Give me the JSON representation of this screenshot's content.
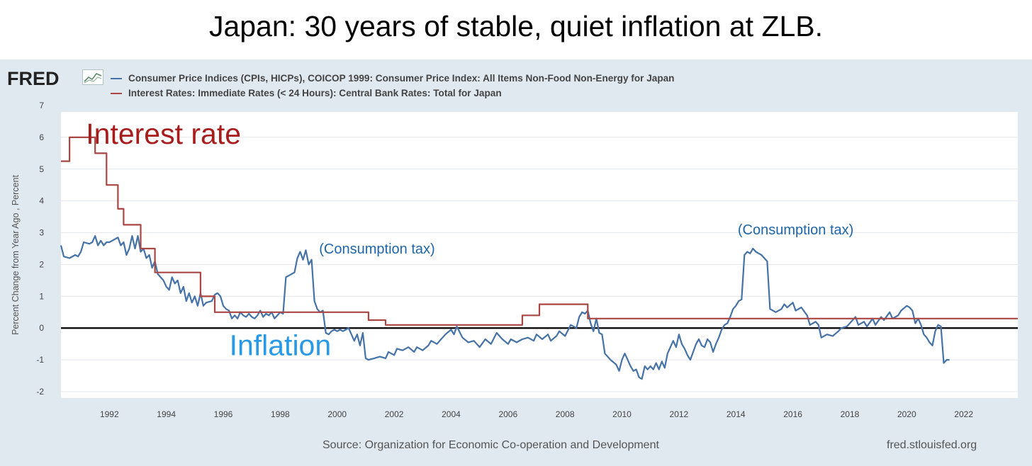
{
  "slide": {
    "title": "Japan: 30 years of stable, quiet inflation at ZLB."
  },
  "fred": {
    "logo": "FRED",
    "source": "Source: Organization for Economic Co-operation and Development",
    "url": "fred.stlouisfed.org"
  },
  "colors": {
    "inflation": "#4572a7",
    "interest": "#aa4643",
    "zero_line": "#000000",
    "panel": "#e1e9f0"
  },
  "chart_data": {
    "type": "line",
    "title": "",
    "ylabel": "Percent Change from Year Ago , Percent",
    "xlim": [
      1990.3,
      2023.9
    ],
    "ylim": [
      -2.2,
      6.8
    ],
    "yticks": [
      -2,
      -1,
      0,
      1,
      2,
      3,
      4,
      5,
      6,
      7
    ],
    "xticks": [
      1992,
      1994,
      1996,
      1998,
      2000,
      2002,
      2004,
      2006,
      2008,
      2010,
      2012,
      2014,
      2016,
      2018,
      2020,
      2022
    ],
    "grid": true,
    "legend_position": "top",
    "series": [
      {
        "name": "Consumer Price Indices (CPIs, HICPs), COICOP 1999: Consumer Price Index: All Items Non-Food Non-Energy for Japan",
        "step": false,
        "points": [
          [
            1990.3,
            2.6
          ],
          [
            1990.4,
            2.25
          ],
          [
            1990.6,
            2.2
          ],
          [
            1990.8,
            2.3
          ],
          [
            1990.9,
            2.25
          ],
          [
            1991.0,
            2.4
          ],
          [
            1991.1,
            2.7
          ],
          [
            1991.3,
            2.65
          ],
          [
            1991.4,
            2.7
          ],
          [
            1991.5,
            2.9
          ],
          [
            1991.6,
            2.6
          ],
          [
            1991.7,
            2.75
          ],
          [
            1991.8,
            2.6
          ],
          [
            1991.9,
            2.7
          ],
          [
            1992.0,
            2.7
          ],
          [
            1992.1,
            2.75
          ],
          [
            1992.2,
            2.8
          ],
          [
            1992.3,
            2.85
          ],
          [
            1992.4,
            2.6
          ],
          [
            1992.5,
            2.7
          ],
          [
            1992.6,
            2.3
          ],
          [
            1992.7,
            2.5
          ],
          [
            1992.8,
            2.9
          ],
          [
            1992.9,
            2.5
          ],
          [
            1993.0,
            2.9
          ],
          [
            1993.1,
            2.4
          ],
          [
            1993.2,
            2.5
          ],
          [
            1993.3,
            2.2
          ],
          [
            1993.4,
            2.3
          ],
          [
            1993.5,
            1.9
          ],
          [
            1993.6,
            2.1
          ],
          [
            1993.7,
            1.7
          ],
          [
            1993.8,
            1.6
          ],
          [
            1993.9,
            1.5
          ],
          [
            1994.0,
            1.3
          ],
          [
            1994.1,
            1.2
          ],
          [
            1994.2,
            1.6
          ],
          [
            1994.3,
            1.4
          ],
          [
            1994.4,
            1.5
          ],
          [
            1994.5,
            1.1
          ],
          [
            1994.6,
            1.3
          ],
          [
            1994.7,
            0.85
          ],
          [
            1994.8,
            1.1
          ],
          [
            1994.9,
            0.8
          ],
          [
            1995.0,
            1.0
          ],
          [
            1995.1,
            0.7
          ],
          [
            1995.2,
            1.1
          ],
          [
            1995.3,
            0.7
          ],
          [
            1995.4,
            0.8
          ],
          [
            1995.6,
            0.85
          ],
          [
            1995.7,
            1.05
          ],
          [
            1995.8,
            1.1
          ],
          [
            1995.9,
            1.0
          ],
          [
            1996.0,
            0.7
          ],
          [
            1996.1,
            0.6
          ],
          [
            1996.2,
            0.55
          ],
          [
            1996.3,
            0.3
          ],
          [
            1996.4,
            0.4
          ],
          [
            1996.5,
            0.3
          ],
          [
            1996.6,
            0.5
          ],
          [
            1996.7,
            0.4
          ],
          [
            1996.8,
            0.35
          ],
          [
            1996.9,
            0.45
          ],
          [
            1997.0,
            0.35
          ],
          [
            1997.1,
            0.3
          ],
          [
            1997.2,
            0.4
          ],
          [
            1997.3,
            0.55
          ],
          [
            1997.4,
            0.35
          ],
          [
            1997.5,
            0.45
          ],
          [
            1997.6,
            0.4
          ],
          [
            1997.7,
            0.5
          ],
          [
            1997.8,
            0.3
          ],
          [
            1997.9,
            0.4
          ],
          [
            1998.0,
            0.5
          ],
          [
            1998.1,
            0.45
          ],
          [
            1998.2,
            1.6
          ],
          [
            1998.3,
            1.65
          ],
          [
            1998.4,
            1.7
          ],
          [
            1998.5,
            1.75
          ],
          [
            1998.6,
            2.2
          ],
          [
            1998.7,
            2.4
          ],
          [
            1998.8,
            2.15
          ],
          [
            1998.9,
            2.45
          ],
          [
            1999.0,
            2.0
          ],
          [
            1999.1,
            2.15
          ],
          [
            1999.2,
            0.85
          ],
          [
            1999.3,
            0.6
          ],
          [
            1999.4,
            0.5
          ],
          [
            1999.5,
            0.55
          ],
          [
            1999.6,
            -0.15
          ],
          [
            1999.7,
            -0.2
          ],
          [
            1999.8,
            -0.1
          ],
          [
            1999.9,
            -0.05
          ],
          [
            2000.0,
            -0.1
          ],
          [
            2000.1,
            -0.05
          ],
          [
            2000.2,
            -0.1
          ],
          [
            2000.3,
            -0.05
          ],
          [
            2000.4,
            0.0
          ],
          [
            2000.5,
            -0.2
          ],
          [
            2000.6,
            -0.4
          ],
          [
            2000.7,
            -0.2
          ],
          [
            2000.8,
            -0.55
          ],
          [
            2000.9,
            -0.15
          ],
          [
            2001.0,
            -0.95
          ],
          [
            2001.1,
            -1.0
          ],
          [
            2001.3,
            -0.95
          ],
          [
            2001.5,
            -0.9
          ],
          [
            2001.7,
            -0.95
          ],
          [
            2001.8,
            -0.75
          ],
          [
            2002.0,
            -0.85
          ],
          [
            2002.1,
            -0.65
          ],
          [
            2002.3,
            -0.7
          ],
          [
            2002.5,
            -0.6
          ],
          [
            2002.7,
            -0.75
          ],
          [
            2002.8,
            -0.6
          ],
          [
            2003.0,
            -0.7
          ],
          [
            2003.2,
            -0.55
          ],
          [
            2003.3,
            -0.4
          ],
          [
            2003.5,
            -0.5
          ],
          [
            2003.7,
            -0.3
          ],
          [
            2003.8,
            -0.2
          ],
          [
            2004.0,
            -0.05
          ],
          [
            2004.1,
            -0.2
          ],
          [
            2004.2,
            0.05
          ],
          [
            2004.4,
            -0.3
          ],
          [
            2004.6,
            -0.45
          ],
          [
            2004.8,
            -0.4
          ],
          [
            2005.0,
            -0.6
          ],
          [
            2005.2,
            -0.35
          ],
          [
            2005.4,
            -0.5
          ],
          [
            2005.6,
            -0.15
          ],
          [
            2005.8,
            -0.35
          ],
          [
            2006.0,
            -0.5
          ],
          [
            2006.1,
            -0.35
          ],
          [
            2006.3,
            -0.45
          ],
          [
            2006.5,
            -0.35
          ],
          [
            2006.7,
            -0.3
          ],
          [
            2006.9,
            -0.4
          ],
          [
            2007.0,
            -0.2
          ],
          [
            2007.2,
            -0.35
          ],
          [
            2007.4,
            -0.2
          ],
          [
            2007.5,
            -0.4
          ],
          [
            2007.7,
            -0.25
          ],
          [
            2007.8,
            -0.1
          ],
          [
            2008.0,
            -0.25
          ],
          [
            2008.2,
            0.1
          ],
          [
            2008.4,
            0.0
          ],
          [
            2008.5,
            0.35
          ],
          [
            2008.6,
            0.5
          ],
          [
            2008.7,
            0.45
          ],
          [
            2008.8,
            0.55
          ],
          [
            2008.9,
            0.15
          ],
          [
            2009.0,
            -0.1
          ],
          [
            2009.1,
            0.3
          ],
          [
            2009.2,
            -0.15
          ],
          [
            2009.3,
            -0.2
          ],
          [
            2009.4,
            -0.8
          ],
          [
            2009.6,
            -1.0
          ],
          [
            2009.8,
            -1.15
          ],
          [
            2009.9,
            -1.35
          ],
          [
            2010.0,
            -1.0
          ],
          [
            2010.1,
            -0.8
          ],
          [
            2010.2,
            -1.0
          ],
          [
            2010.3,
            -1.2
          ],
          [
            2010.4,
            -1.35
          ],
          [
            2010.5,
            -1.3
          ],
          [
            2010.6,
            -1.55
          ],
          [
            2010.7,
            -1.6
          ],
          [
            2010.8,
            -1.2
          ],
          [
            2010.9,
            -1.3
          ],
          [
            2011.0,
            -1.2
          ],
          [
            2011.1,
            -1.3
          ],
          [
            2011.2,
            -1.1
          ],
          [
            2011.3,
            -1.3
          ],
          [
            2011.4,
            -1.05
          ],
          [
            2011.5,
            -1.25
          ],
          [
            2011.6,
            -0.8
          ],
          [
            2011.8,
            -0.4
          ],
          [
            2011.9,
            -0.6
          ],
          [
            2012.0,
            -0.2
          ],
          [
            2012.1,
            -0.5
          ],
          [
            2012.2,
            -0.65
          ],
          [
            2012.3,
            -0.85
          ],
          [
            2012.4,
            -1.0
          ],
          [
            2012.5,
            -0.75
          ],
          [
            2012.6,
            -0.5
          ],
          [
            2012.7,
            -0.35
          ],
          [
            2012.8,
            -0.55
          ],
          [
            2012.9,
            -0.6
          ],
          [
            2013.0,
            -0.35
          ],
          [
            2013.1,
            -0.45
          ],
          [
            2013.2,
            -0.75
          ],
          [
            2013.3,
            -0.5
          ],
          [
            2013.4,
            -0.3
          ],
          [
            2013.5,
            -0.05
          ],
          [
            2013.6,
            0.1
          ],
          [
            2013.7,
            0.15
          ],
          [
            2013.8,
            0.35
          ],
          [
            2013.9,
            0.6
          ],
          [
            2014.0,
            0.7
          ],
          [
            2014.1,
            0.85
          ],
          [
            2014.2,
            0.9
          ],
          [
            2014.3,
            2.3
          ],
          [
            2014.4,
            2.4
          ],
          [
            2014.5,
            2.35
          ],
          [
            2014.6,
            2.5
          ],
          [
            2014.7,
            2.4
          ],
          [
            2014.8,
            2.35
          ],
          [
            2014.9,
            2.3
          ],
          [
            2015.0,
            2.2
          ],
          [
            2015.1,
            2.1
          ],
          [
            2015.2,
            0.6
          ],
          [
            2015.4,
            0.5
          ],
          [
            2015.6,
            0.6
          ],
          [
            2015.7,
            0.75
          ],
          [
            2015.8,
            0.65
          ],
          [
            2016.0,
            0.8
          ],
          [
            2016.1,
            0.55
          ],
          [
            2016.3,
            0.65
          ],
          [
            2016.5,
            0.4
          ],
          [
            2016.6,
            0.1
          ],
          [
            2016.8,
            0.2
          ],
          [
            2016.9,
            0.1
          ],
          [
            2017.0,
            -0.3
          ],
          [
            2017.2,
            -0.2
          ],
          [
            2017.4,
            -0.25
          ],
          [
            2017.6,
            -0.1
          ],
          [
            2017.7,
            0.0
          ],
          [
            2017.9,
            0.05
          ],
          [
            2018.0,
            0.15
          ],
          [
            2018.2,
            0.35
          ],
          [
            2018.3,
            0.1
          ],
          [
            2018.5,
            0.2
          ],
          [
            2018.6,
            0.05
          ],
          [
            2018.8,
            0.3
          ],
          [
            2018.9,
            0.1
          ],
          [
            2019.1,
            0.35
          ],
          [
            2019.2,
            0.25
          ],
          [
            2019.4,
            0.5
          ],
          [
            2019.5,
            0.3
          ],
          [
            2019.7,
            0.4
          ],
          [
            2019.8,
            0.55
          ],
          [
            2020.0,
            0.7
          ],
          [
            2020.1,
            0.65
          ],
          [
            2020.2,
            0.55
          ],
          [
            2020.3,
            0.15
          ],
          [
            2020.4,
            0.3
          ],
          [
            2020.5,
            0.1
          ],
          [
            2020.6,
            -0.2
          ],
          [
            2020.7,
            -0.3
          ],
          [
            2020.8,
            -0.45
          ],
          [
            2020.9,
            -0.55
          ],
          [
            2021.0,
            -0.1
          ],
          [
            2021.1,
            0.1
          ],
          [
            2021.2,
            0.05
          ],
          [
            2021.3,
            -1.1
          ],
          [
            2021.4,
            -1.0
          ],
          [
            2021.5,
            -1.0
          ]
        ]
      },
      {
        "name": "Interest Rates: Immediate Rates (< 24 Hours): Central Bank Rates: Total for Japan",
        "step": true,
        "points": [
          [
            1990.3,
            5.25
          ],
          [
            1990.6,
            6.0
          ],
          [
            1991.5,
            5.5
          ],
          [
            1991.9,
            4.5
          ],
          [
            1992.3,
            3.75
          ],
          [
            1992.5,
            3.25
          ],
          [
            1993.1,
            2.5
          ],
          [
            1993.6,
            1.75
          ],
          [
            1995.2,
            1.0
          ],
          [
            1995.7,
            0.5
          ],
          [
            2001.1,
            0.25
          ],
          [
            2001.7,
            0.1
          ],
          [
            2006.5,
            0.4
          ],
          [
            2007.1,
            0.75
          ],
          [
            2008.8,
            0.3
          ],
          [
            2023.9,
            0.3
          ]
        ]
      }
    ],
    "annotations": [
      {
        "text": "Interest rate",
        "x": 1993.9,
        "y": 5.8,
        "style": "big-red"
      },
      {
        "text": "Inflation",
        "x": 1998.0,
        "y": -0.85,
        "style": "big-blue"
      },
      {
        "text": "(Consumption tax)",
        "x": 2001.4,
        "y": 2.35,
        "style": "small"
      },
      {
        "text": "(Consumption tax)",
        "x": 2016.1,
        "y": 2.95,
        "style": "small"
      }
    ]
  }
}
